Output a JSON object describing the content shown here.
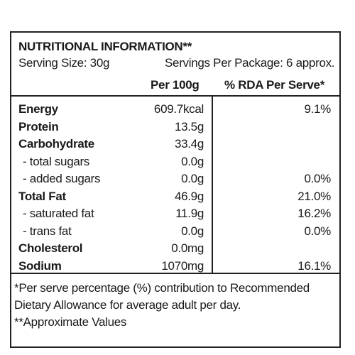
{
  "title": "NUTRITIONAL INFORMATION**",
  "serving_size": "Serving Size: 30g",
  "servings_per_package": "Servings Per Package: 6 approx.",
  "headers": {
    "per100g": "Per 100g",
    "rda": "% RDA Per Serve*"
  },
  "rows": [
    {
      "name": "Energy",
      "value": "609.7kcal",
      "rda": "9.1%"
    },
    {
      "name": "Protein",
      "value": "13.5g",
      "rda": ""
    },
    {
      "name": "Carbohydrate",
      "value": "33.4g",
      "rda": ""
    },
    {
      "name": "- total sugars",
      "value": "0.0g",
      "rda": ""
    },
    {
      "name": "- added sugars",
      "value": "0.0g",
      "rda": "0.0%"
    },
    {
      "name": "Total Fat",
      "value": "46.9g",
      "rda": "21.0%"
    },
    {
      "name": "- saturated fat",
      "value": "11.9g",
      "rda": "16.2%"
    },
    {
      "name": "- trans fat",
      "value": "0.0g",
      "rda": "0.0%"
    },
    {
      "name": "Cholesterol",
      "value": "0.0mg",
      "rda": ""
    },
    {
      "name": "Sodium",
      "value": "1070mg",
      "rda": "16.1%"
    }
  ],
  "footnotes": {
    "line1": "*Per serve percentage (%) contribution to Recommended",
    "line2": "Dietary Allowance for average adult per day.",
    "line3": "**Approximate Values"
  }
}
